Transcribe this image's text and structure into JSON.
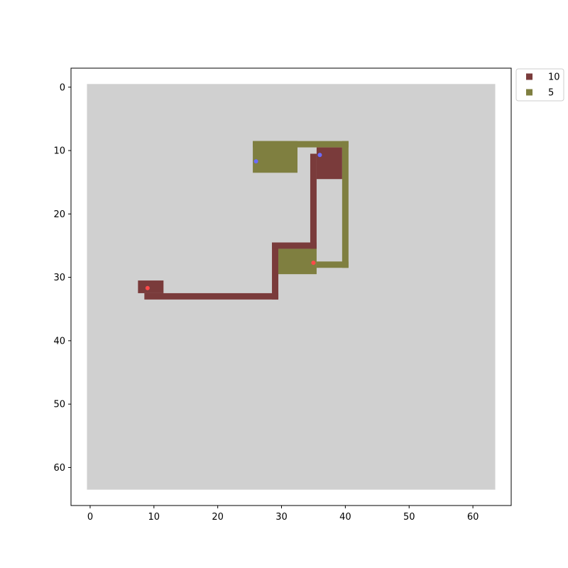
{
  "chart_data": {
    "type": "heatmap",
    "title": "",
    "xlabel": "",
    "ylabel": "",
    "xlim": [
      -3,
      66
    ],
    "ylim": [
      66,
      -3
    ],
    "y_inverted": true,
    "x_ticks": [
      0,
      10,
      20,
      30,
      40,
      50,
      60
    ],
    "y_ticks": [
      0,
      10,
      20,
      30,
      40,
      50,
      60
    ],
    "grid": false,
    "legend_placement": "outside-top-right",
    "background": {
      "x_range": [
        0,
        64
      ],
      "y_range": [
        0,
        64
      ],
      "color": "#d0d0d0"
    },
    "series": [
      {
        "name": "10",
        "color": "#7a3b3b",
        "rects": [
          {
            "x": [
              8,
              12
            ],
            "y": [
              31,
              33
            ]
          },
          {
            "x": [
              9,
              30
            ],
            "y": [
              33,
              34
            ]
          },
          {
            "x": [
              29,
              30
            ],
            "y": [
              25,
              34
            ]
          },
          {
            "x": [
              29,
              36
            ],
            "y": [
              25,
              26
            ]
          },
          {
            "x": [
              35,
              36
            ],
            "y": [
              11,
              26
            ]
          },
          {
            "x": [
              36,
              40
            ],
            "y": [
              10,
              15
            ]
          }
        ]
      },
      {
        "name": "5",
        "color": "#7f7f40",
        "rects": [
          {
            "x": [
              26,
              33
            ],
            "y": [
              9,
              14
            ]
          },
          {
            "x": [
              26,
              41
            ],
            "y": [
              9,
              10
            ]
          },
          {
            "x": [
              40,
              41
            ],
            "y": [
              9,
              29
            ]
          },
          {
            "x": [
              36,
              41
            ],
            "y": [
              28,
              29
            ]
          },
          {
            "x": [
              30,
              36
            ],
            "y": [
              26,
              30
            ]
          }
        ]
      }
    ],
    "points": [
      {
        "x": 26.5,
        "y": 12.2,
        "color": "#6b6bff"
      },
      {
        "x": 36.5,
        "y": 11.2,
        "color": "#6b6bff"
      },
      {
        "x": 35.5,
        "y": 28.2,
        "color": "#ff4a4a"
      },
      {
        "x": 9.5,
        "y": 32.2,
        "color": "#ff4a4a"
      }
    ]
  }
}
